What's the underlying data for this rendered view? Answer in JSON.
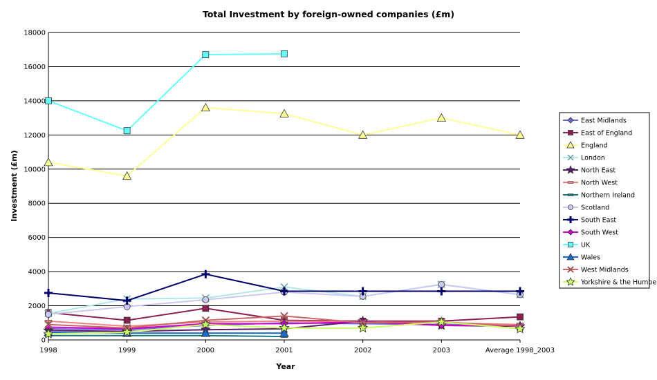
{
  "chart_data": {
    "type": "line",
    "title": "Total Investment by foreign-owned companies (£m)",
    "xlabel": "Year",
    "ylabel": "Investment (£m)",
    "ylim": [
      0,
      18000
    ],
    "ytick_step": 2000,
    "grid": "horizontal major gridlines",
    "legend_position": "right",
    "categories": [
      "1998",
      "1999",
      "2000",
      "2001",
      "2002",
      "2003",
      "Average 1998_2003"
    ],
    "series": [
      {
        "name": "East Midlands",
        "color": "#6a6ad2",
        "marker": "diamond",
        "values": [
          650,
          600,
          850,
          1000,
          950,
          900,
          850
        ]
      },
      {
        "name": "East of England",
        "color": "#8b2052",
        "marker": "square",
        "values": [
          1600,
          1150,
          1850,
          1150,
          1100,
          1100,
          1350
        ]
      },
      {
        "name": "England",
        "color": "#ffff99",
        "marker": "triangle",
        "values": [
          10400,
          9600,
          13600,
          13250,
          12000,
          13000,
          12000
        ]
      },
      {
        "name": "London",
        "color": "#b0e8e8",
        "marker": "x",
        "values": [
          1550,
          2400,
          2450,
          3100,
          2550,
          3250,
          2650
        ]
      },
      {
        "name": "North East",
        "color": "#5a1a6a",
        "marker": "star",
        "values": [
          550,
          500,
          600,
          650,
          1100,
          850,
          800
        ]
      },
      {
        "name": "North West",
        "color": "#f08080",
        "marker": "dash",
        "values": [
          1100,
          800,
          1050,
          1100,
          1050,
          1000,
          900
        ]
      },
      {
        "name": "Northern Ireland",
        "color": "#1a7a7a",
        "marker": "dash",
        "values": [
          250,
          250,
          250,
          200,
          null,
          null,
          null
        ]
      },
      {
        "name": "Scotland",
        "color": "#c8c8f0",
        "marker": "circle",
        "values": [
          1500,
          1950,
          2350,
          2800,
          2550,
          3250,
          2650
        ]
      },
      {
        "name": "South East",
        "color": "#000066",
        "marker": "cross",
        "values": [
          2750,
          2300,
          3850,
          2850,
          2850,
          2850,
          2850
        ]
      },
      {
        "name": "South West",
        "color": "#cc00cc",
        "marker": "diamond",
        "values": [
          750,
          650,
          950,
          950,
          1050,
          850,
          850
        ]
      },
      {
        "name": "UK",
        "color": "#66ffff",
        "marker": "square",
        "values": [
          14000,
          12250,
          16700,
          16750,
          null,
          null,
          null
        ]
      },
      {
        "name": "Wales",
        "color": "#1a6acc",
        "marker": "triangle",
        "values": [
          450,
          400,
          400,
          400,
          null,
          null,
          null
        ]
      },
      {
        "name": "West Midlands",
        "color": "#cc6666",
        "marker": "x",
        "values": [
          900,
          700,
          1150,
          1400,
          1000,
          1050,
          800
        ]
      },
      {
        "name": "Yorkshire & the Humber",
        "color": "#ccff66",
        "marker": "star",
        "values": [
          350,
          450,
          900,
          700,
          700,
          1050,
          650
        ]
      }
    ]
  }
}
